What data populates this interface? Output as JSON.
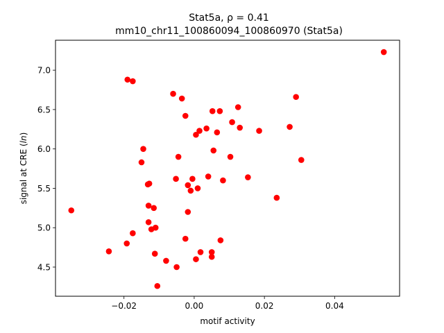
{
  "chart_data": {
    "type": "scatter",
    "title_line1": "Stat5a, ρ = 0.41",
    "title_line2": "mm10_chr11_100860094_100860970 (Stat5a)",
    "xlabel": "motif activity",
    "ylabel": "signal at CRE (ln)",
    "xlim": [
      -0.0395,
      0.0585
    ],
    "ylim": [
      4.13,
      7.38
    ],
    "xticks": [
      -0.02,
      0.0,
      0.02,
      0.04
    ],
    "xtick_labels": [
      "−0.02",
      "0.00",
      "0.02",
      "0.04"
    ],
    "yticks": [
      4.5,
      5.0,
      5.5,
      6.0,
      6.5,
      7.0
    ],
    "ytick_labels": [
      "4.5",
      "5.0",
      "5.5",
      "6.0",
      "6.5",
      "7.0"
    ],
    "marker_color": "#ff0000",
    "grid": false,
    "points": [
      {
        "x": 0.054,
        "y": 7.23
      },
      {
        "x": -0.019,
        "y": 6.88
      },
      {
        "x": -0.0175,
        "y": 6.86
      },
      {
        "x": -0.006,
        "y": 6.7
      },
      {
        "x": -0.0035,
        "y": 6.64
      },
      {
        "x": 0.029,
        "y": 6.66
      },
      {
        "x": 0.0125,
        "y": 6.53
      },
      {
        "x": 0.0052,
        "y": 6.48
      },
      {
        "x": 0.0073,
        "y": 6.48
      },
      {
        "x": -0.0025,
        "y": 6.42
      },
      {
        "x": 0.0108,
        "y": 6.34
      },
      {
        "x": 0.0035,
        "y": 6.26
      },
      {
        "x": 0.013,
        "y": 6.27
      },
      {
        "x": 0.0272,
        "y": 6.28
      },
      {
        "x": 0.0015,
        "y": 6.23
      },
      {
        "x": 0.0185,
        "y": 6.23
      },
      {
        "x": 0.0065,
        "y": 6.21
      },
      {
        "x": 0.0005,
        "y": 6.18
      },
      {
        "x": -0.0145,
        "y": 6.0
      },
      {
        "x": 0.0055,
        "y": 5.98
      },
      {
        "x": -0.0045,
        "y": 5.9
      },
      {
        "x": 0.0103,
        "y": 5.9
      },
      {
        "x": 0.0305,
        "y": 5.86
      },
      {
        "x": -0.015,
        "y": 5.83
      },
      {
        "x": 0.004,
        "y": 5.65
      },
      {
        "x": 0.0153,
        "y": 5.64
      },
      {
        "x": -0.0052,
        "y": 5.62
      },
      {
        "x": -0.0005,
        "y": 5.62
      },
      {
        "x": 0.0082,
        "y": 5.6
      },
      {
        "x": -0.0132,
        "y": 5.55
      },
      {
        "x": -0.0128,
        "y": 5.56
      },
      {
        "x": -0.0018,
        "y": 5.54
      },
      {
        "x": 0.001,
        "y": 5.5
      },
      {
        "x": -0.001,
        "y": 5.47
      },
      {
        "x": 0.0235,
        "y": 5.38
      },
      {
        "x": -0.013,
        "y": 5.28
      },
      {
        "x": -0.0115,
        "y": 5.25
      },
      {
        "x": -0.035,
        "y": 5.22
      },
      {
        "x": -0.0018,
        "y": 5.2
      },
      {
        "x": -0.013,
        "y": 5.07
      },
      {
        "x": -0.0122,
        "y": 4.98
      },
      {
        "x": -0.011,
        "y": 5.0
      },
      {
        "x": -0.0175,
        "y": 4.93
      },
      {
        "x": -0.0025,
        "y": 4.86
      },
      {
        "x": 0.0075,
        "y": 4.84
      },
      {
        "x": -0.0192,
        "y": 4.8
      },
      {
        "x": -0.0243,
        "y": 4.7
      },
      {
        "x": 0.0018,
        "y": 4.69
      },
      {
        "x": 0.005,
        "y": 4.69
      },
      {
        "x": -0.0112,
        "y": 4.67
      },
      {
        "x": 0.005,
        "y": 4.63
      },
      {
        "x": 0.0005,
        "y": 4.6
      },
      {
        "x": -0.008,
        "y": 4.58
      },
      {
        "x": -0.005,
        "y": 4.5
      },
      {
        "x": -0.0105,
        "y": 4.26
      }
    ]
  }
}
